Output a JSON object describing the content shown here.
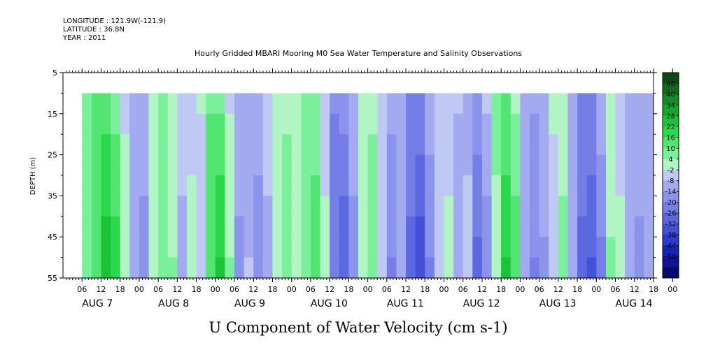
{
  "chart_data": {
    "type": "heatmap",
    "meta": {
      "longitude": "LONGITUDE : 121.9W(-121.9)",
      "latitude": "LATITUDE : 36.8N",
      "year": "YEAR : 2011"
    },
    "title": "Hourly Gridded MBARI Mooring M0 Sea Water Temperature and Salinity Observations",
    "subtitle": "U Component of Water Velocity (cm s-1)",
    "ylabel": "DEPTH (m)",
    "y_ticks": [
      "5",
      "15",
      "25",
      "35",
      "45",
      "55"
    ],
    "y_range": [
      5,
      55
    ],
    "y_axis_inverted": true,
    "data_depth_range": [
      10,
      55
    ],
    "x_hour_labels": [
      "06",
      "12",
      "18",
      "00",
      "06",
      "12",
      "18",
      "00",
      "06",
      "12",
      "18",
      "00",
      "06",
      "12",
      "18",
      "00",
      "06",
      "12",
      "18",
      "00",
      "06",
      "12",
      "18",
      "00",
      "06",
      "12",
      "18",
      "00",
      "06",
      "12",
      "18",
      "00"
    ],
    "x_day_labels": [
      "AUG 7",
      "AUG 8",
      "AUG 9",
      "AUG 10",
      "AUG 11",
      "AUG 12",
      "AUG 13",
      "AUG 14"
    ],
    "x_range_hours": [
      0,
      186
    ],
    "data_time_range_hours": [
      6,
      186
    ],
    "colorbar_labels": [
      "46",
      "40",
      "34",
      "28",
      "22",
      "16",
      "10",
      "4",
      "-2",
      "-8",
      "-14",
      "-20",
      "-26",
      "-32",
      "-38",
      "-44",
      "-50"
    ],
    "colorbar_colors": [
      "#0b4a13",
      "#0f6a1b",
      "#138c24",
      "#16a82c",
      "#1cc338",
      "#2bd74b",
      "#52e571",
      "#7bf09a",
      "#b2f5c4",
      "#c0c8f4",
      "#a3aaef",
      "#8b94eb",
      "#747ee6",
      "#5c68e0",
      "#4350d8",
      "#2b39cc",
      "#1625b4",
      "#0b1595",
      "#0a0a6e"
    ],
    "approx_column_values_by_hour": [
      {
        "hour": 6,
        "value": 8
      },
      {
        "hour": 9,
        "value": 14
      },
      {
        "hour": 12,
        "value": 22
      },
      {
        "hour": 15,
        "value": 18
      },
      {
        "hour": 18,
        "value": 4
      },
      {
        "hour": 21,
        "value": -8
      },
      {
        "hour": 24,
        "value": -12
      },
      {
        "hour": 27,
        "value": 2
      },
      {
        "hour": 30,
        "value": 10
      },
      {
        "hour": 33,
        "value": 6
      },
      {
        "hour": 36,
        "value": -6
      },
      {
        "hour": 39,
        "value": 2
      },
      {
        "hour": 42,
        "value": -4
      },
      {
        "hour": 45,
        "value": 12
      },
      {
        "hour": 48,
        "value": 20
      },
      {
        "hour": 51,
        "value": 6
      },
      {
        "hour": 54,
        "value": -10
      },
      {
        "hour": 57,
        "value": -4
      },
      {
        "hour": 60,
        "value": -12
      },
      {
        "hour": 63,
        "value": -6
      },
      {
        "hour": 66,
        "value": 4
      },
      {
        "hour": 69,
        "value": 10
      },
      {
        "hour": 72,
        "value": 2
      },
      {
        "hour": 75,
        "value": 8
      },
      {
        "hour": 78,
        "value": 14
      },
      {
        "hour": 81,
        "value": 4
      },
      {
        "hour": 84,
        "value": -18
      },
      {
        "hour": 87,
        "value": -22
      },
      {
        "hour": 90,
        "value": -12
      },
      {
        "hour": 93,
        "value": 2
      },
      {
        "hour": 96,
        "value": 10
      },
      {
        "hour": 99,
        "value": 0
      },
      {
        "hour": 102,
        "value": -14
      },
      {
        "hour": 105,
        "value": -8
      },
      {
        "hour": 108,
        "value": -20
      },
      {
        "hour": 111,
        "value": -26
      },
      {
        "hour": 114,
        "value": -14
      },
      {
        "hour": 117,
        "value": -4
      },
      {
        "hour": 120,
        "value": 2
      },
      {
        "hour": 123,
        "value": -8
      },
      {
        "hour": 126,
        "value": -2
      },
      {
        "hour": 129,
        "value": -20
      },
      {
        "hour": 132,
        "value": -12
      },
      {
        "hour": 135,
        "value": 4
      },
      {
        "hour": 138,
        "value": 20
      },
      {
        "hour": 141,
        "value": 14
      },
      {
        "hour": 144,
        "value": -6
      },
      {
        "hour": 147,
        "value": -14
      },
      {
        "hour": 150,
        "value": -10
      },
      {
        "hour": 153,
        "value": -2
      },
      {
        "hour": 156,
        "value": 8
      },
      {
        "hour": 159,
        "value": -8
      },
      {
        "hour": 162,
        "value": -20
      },
      {
        "hour": 165,
        "value": -24
      },
      {
        "hour": 168,
        "value": -16
      },
      {
        "hour": 171,
        "value": 6
      },
      {
        "hour": 174,
        "value": 2
      },
      {
        "hour": 177,
        "value": -6
      },
      {
        "hour": 180,
        "value": -10
      },
      {
        "hour": 183,
        "value": -8
      },
      {
        "hour": 186,
        "value": -6
      }
    ]
  }
}
